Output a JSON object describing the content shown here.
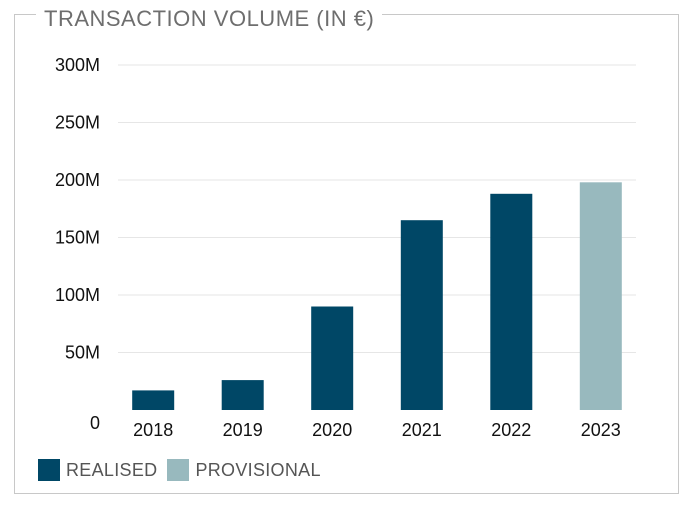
{
  "chart_data": {
    "type": "bar",
    "title": "TRANSACTION VOLUME (IN €)",
    "categories": [
      "2018",
      "2019",
      "2020",
      "2021",
      "2022",
      "2023"
    ],
    "values": [
      17,
      26,
      90,
      165,
      188,
      198
    ],
    "status": [
      "realised",
      "realised",
      "realised",
      "realised",
      "realised",
      "provisional"
    ],
    "unit": "M",
    "ylim": [
      0,
      300
    ],
    "yticks": [
      0,
      50,
      100,
      150,
      200,
      250,
      300
    ],
    "ytick_labels": [
      "0",
      "50M",
      "100M",
      "150M",
      "200M",
      "250M",
      "300M"
    ],
    "grid": true,
    "legend": {
      "placement": "bottom-left",
      "items": [
        {
          "key": "realised",
          "label": "REALISED",
          "color": "#004766"
        },
        {
          "key": "provisional",
          "label": "PROVISIONAL",
          "color": "#98b9be"
        }
      ]
    },
    "colors": {
      "realised": "#004766",
      "provisional": "#98b9be",
      "grid": "#e6e6e6",
      "frame": "#c8c8c8"
    }
  }
}
